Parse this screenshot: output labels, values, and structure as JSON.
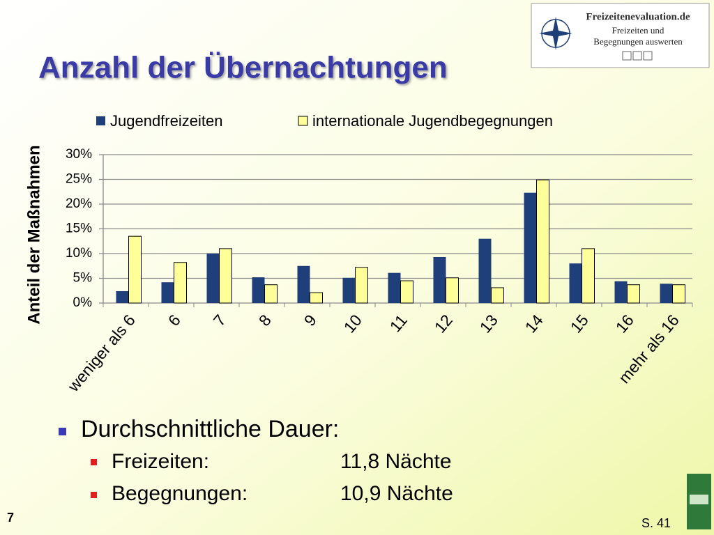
{
  "slide": {
    "title": "Anzahl der Übernachtungen",
    "logo": {
      "name": "Freizeitenevaluation.de",
      "line1": "Freizeiten und",
      "line2": "Begegnungen auswerten"
    },
    "bullet": "Durchschnittliche Dauer:",
    "subbullets": [
      [
        "Freizeiten:",
        "11,8 Nächte"
      ],
      [
        "Begegnungen:",
        "10,9 Nächte"
      ]
    ],
    "slide_number": "7",
    "page_ref": "S. 41"
  },
  "chart_data": {
    "type": "bar",
    "ylabel": "Anteil der Maßnahmen",
    "categories": [
      "weniger als 6",
      "6",
      "7",
      "8",
      "9",
      "10",
      "11",
      "12",
      "13",
      "14",
      "15",
      "16",
      "mehr als 16"
    ],
    "series": [
      {
        "name": "Jugendfreizeiten",
        "color": "#1f3f7a",
        "values": [
          2.4,
          4.2,
          10.0,
          5.2,
          7.5,
          5.1,
          6.1,
          9.3,
          13.0,
          22.3,
          8.0,
          4.4,
          3.9
        ]
      },
      {
        "name": "internationale Jugendbegegnungen",
        "color": "#ffff99",
        "values": [
          13.5,
          8.2,
          11.0,
          3.7,
          2.1,
          7.2,
          4.5,
          5.1,
          3.1,
          24.9,
          11.0,
          3.7,
          3.7
        ]
      }
    ],
    "ylim": [
      0,
      30
    ],
    "yticks": [
      {
        "value": 0,
        "label": "0%"
      },
      {
        "value": 5,
        "label": "5%"
      },
      {
        "value": 10,
        "label": "10%"
      },
      {
        "value": 15,
        "label": "15%"
      },
      {
        "value": 20,
        "label": "20%"
      },
      {
        "value": 25,
        "label": "25%"
      },
      {
        "value": 30,
        "label": "30%"
      }
    ],
    "grid": true,
    "legend": "top"
  }
}
